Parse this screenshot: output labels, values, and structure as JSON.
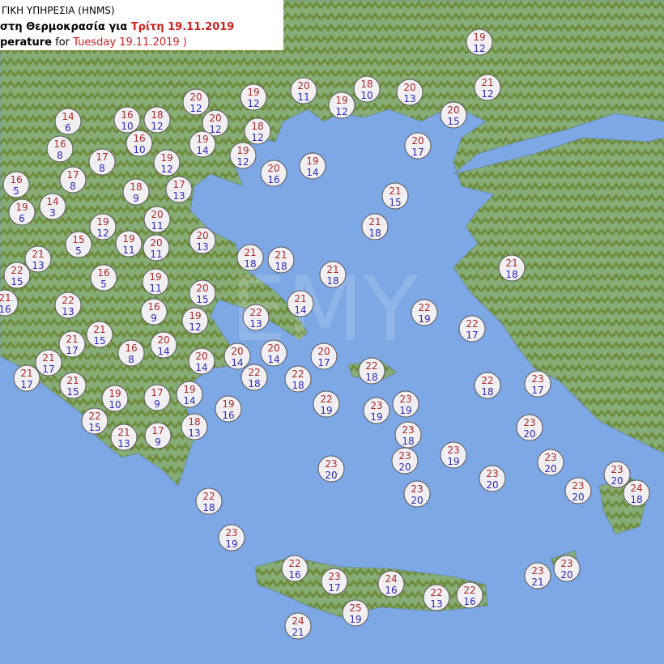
{
  "header": {
    "line1": "ΓΙΚΗ ΥΠΗΡΕΣΙΑ (HNMS)",
    "line2_prefix": "στη Θερμοκρασία για",
    "line2_date": "Τρίτη 19.11.2019",
    "line3_prefix": "perature",
    "line3_for": "for",
    "line3_date": "Tuesday 19.11.2019 )"
  },
  "watermark": "EMY",
  "markers": [
    {
      "max": 19,
      "min": 12
    },
    {
      "max": 21,
      "min": 12
    },
    {
      "max": 20,
      "min": 12
    },
    {
      "max": 19,
      "min": 12
    },
    {
      "max": 20,
      "min": 11
    },
    {
      "max": 18,
      "min": 10
    },
    {
      "max": 20,
      "min": 13
    },
    {
      "max": 19,
      "min": 12
    },
    {
      "max": 20,
      "min": 15
    },
    {
      "max": 14,
      "min": 6
    },
    {
      "max": 16,
      "min": 10
    },
    {
      "max": 18,
      "min": 12
    },
    {
      "max": 20,
      "min": 12
    },
    {
      "max": 18,
      "min": 12
    },
    {
      "max": 19,
      "min": 14
    },
    {
      "max": 20,
      "min": 17
    },
    {
      "max": 16,
      "min": 8
    },
    {
      "max": 16,
      "min": 10
    },
    {
      "max": 17,
      "min": 8
    },
    {
      "max": 19,
      "min": 12
    },
    {
      "max": 19,
      "min": 12
    },
    {
      "max": 19,
      "min": 14
    },
    {
      "max": 20,
      "min": 16
    },
    {
      "max": 16,
      "min": 5
    },
    {
      "max": 17,
      "min": 8
    },
    {
      "max": 18,
      "min": 9
    },
    {
      "max": 17,
      "min": 13
    },
    {
      "max": 21,
      "min": 15
    },
    {
      "max": 14,
      "min": 3
    },
    {
      "max": 19,
      "min": 6
    },
    {
      "max": 19,
      "min": 12
    },
    {
      "max": 20,
      "min": 11
    },
    {
      "max": 21,
      "min": 18
    },
    {
      "max": 15,
      "min": 5
    },
    {
      "max": 19,
      "min": 11
    },
    {
      "max": 20,
      "min": 11
    },
    {
      "max": 20,
      "min": 13
    },
    {
      "max": 21,
      "min": 13
    },
    {
      "max": 21,
      "min": 18
    },
    {
      "max": 21,
      "min": 18
    },
    {
      "max": 22,
      "min": 15
    },
    {
      "max": 16,
      "min": 5
    },
    {
      "max": 21,
      "min": 18
    },
    {
      "max": 21,
      "min": 18
    },
    {
      "max": 19,
      "min": 11
    },
    {
      "max": 21,
      "min": 16
    },
    {
      "max": 20,
      "min": 15
    },
    {
      "max": 22,
      "min": 13
    },
    {
      "max": 21,
      "min": 14
    },
    {
      "max": 16,
      "min": 9
    },
    {
      "max": 22,
      "min": 19
    },
    {
      "max": 19,
      "min": 12
    },
    {
      "max": 22,
      "min": 13
    },
    {
      "max": 22,
      "min": 17
    },
    {
      "max": 21,
      "min": 17
    },
    {
      "max": 21,
      "min": 15
    },
    {
      "max": 20,
      "min": 14
    },
    {
      "max": 16,
      "min": 8
    },
    {
      "max": 21,
      "min": 17
    },
    {
      "max": 20,
      "min": 14
    },
    {
      "max": 20,
      "min": 14
    },
    {
      "max": 20,
      "min": 14
    },
    {
      "max": 20,
      "min": 17
    },
    {
      "max": 22,
      "min": 18
    },
    {
      "max": 21,
      "min": 17
    },
    {
      "max": 22,
      "min": 18
    },
    {
      "max": 22,
      "min": 18
    },
    {
      "max": 23,
      "min": 17
    },
    {
      "max": 22,
      "min": 18
    },
    {
      "max": 21,
      "min": 15
    },
    {
      "max": 19,
      "min": 10
    },
    {
      "max": 17,
      "min": 9
    },
    {
      "max": 19,
      "min": 14
    },
    {
      "max": 22,
      "min": 19
    },
    {
      "max": 23,
      "min": 19
    },
    {
      "max": 23,
      "min": 19
    },
    {
      "max": 19,
      "min": 16
    },
    {
      "max": 22,
      "min": 15
    },
    {
      "max": 18,
      "min": 13
    },
    {
      "max": 23,
      "min": 20
    },
    {
      "max": 21,
      "min": 13
    },
    {
      "max": 17,
      "min": 9
    },
    {
      "max": 23,
      "min": 18
    },
    {
      "max": 23,
      "min": 19
    },
    {
      "max": 23,
      "min": 20
    },
    {
      "max": 23,
      "min": 20
    },
    {
      "max": 23,
      "min": 20
    },
    {
      "max": 23,
      "min": 20
    },
    {
      "max": 23,
      "min": 20
    },
    {
      "max": 23,
      "min": 20
    },
    {
      "max": 23,
      "min": 20
    },
    {
      "max": 24,
      "min": 18
    },
    {
      "max": 22,
      "min": 18
    },
    {
      "max": 23,
      "min": 19
    },
    {
      "max": 22,
      "min": 16
    },
    {
      "max": 23,
      "min": 20
    },
    {
      "max": 23,
      "min": 21
    },
    {
      "max": 23,
      "min": 17
    },
    {
      "max": 24,
      "min": 16
    },
    {
      "max": 22,
      "min": 13
    },
    {
      "max": 22,
      "min": 16
    },
    {
      "max": 25,
      "min": 19
    },
    {
      "max": 24,
      "min": 21
    }
  ]
}
